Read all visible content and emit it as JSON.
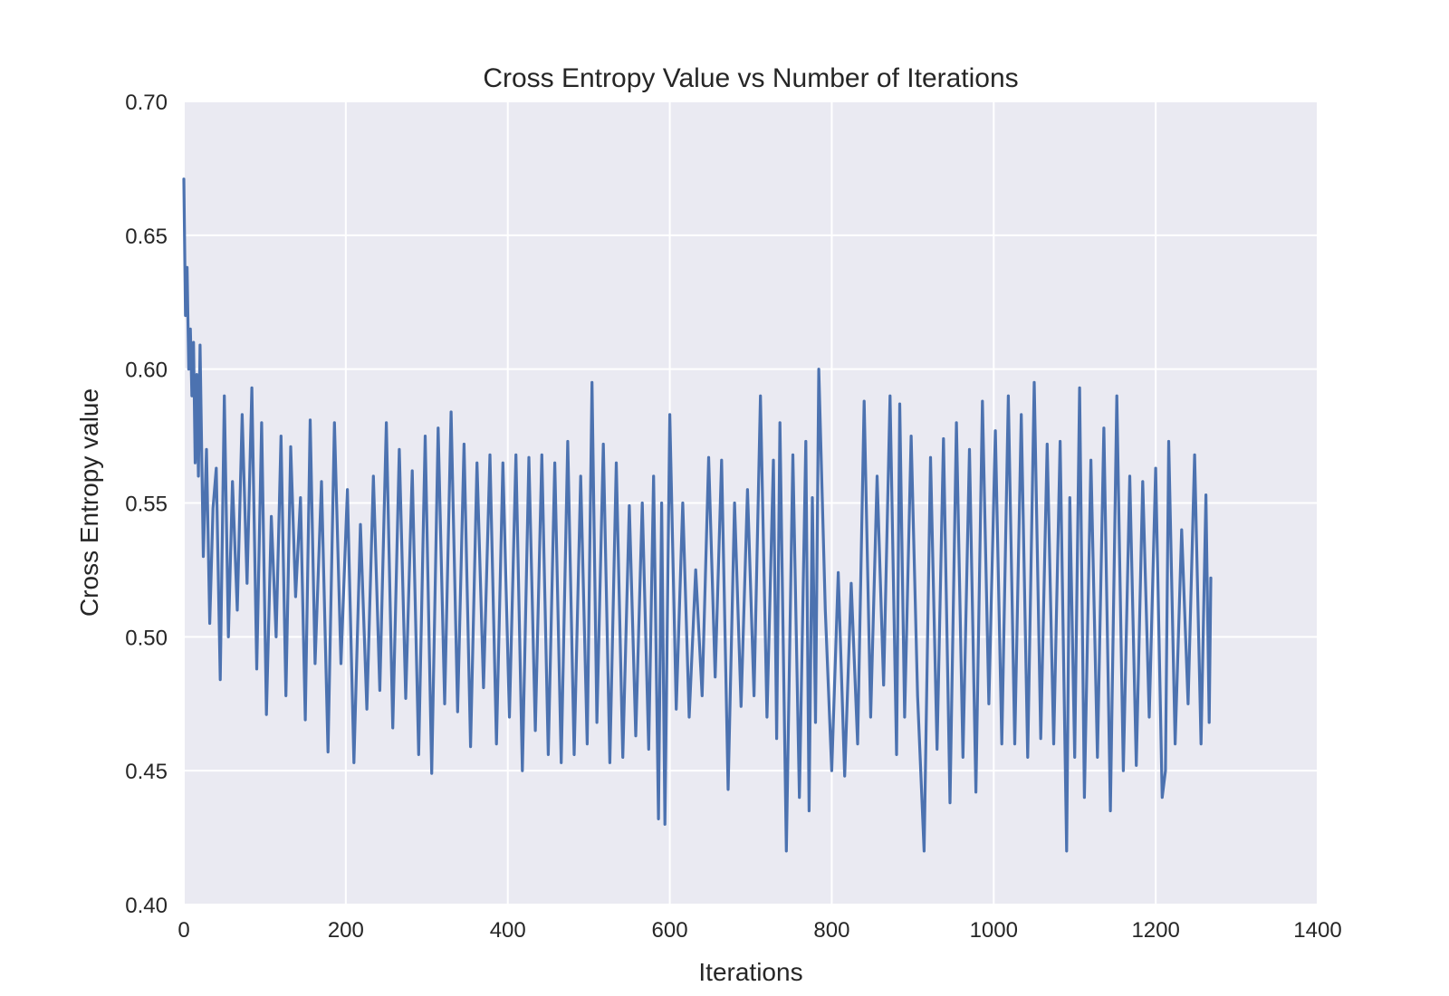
{
  "chart_data": {
    "type": "line",
    "title": "Cross Entropy Value vs Number of Iterations",
    "xlabel": "Iterations",
    "ylabel": "Cross Entropy value",
    "xlim": [
      0,
      1400
    ],
    "ylim": [
      0.4,
      0.7
    ],
    "x_ticks": [
      "0",
      "200",
      "400",
      "600",
      "800",
      "1000",
      "1200",
      "1400"
    ],
    "y_ticks": [
      "0.40",
      "0.45",
      "0.50",
      "0.55",
      "0.60",
      "0.65",
      "0.70"
    ],
    "grid": true,
    "legend": "none",
    "colors": {
      "plot_background": "#eaeaf2",
      "grid": "#ffffff",
      "line": "#4c72b0",
      "text": "#262626"
    },
    "series": [
      {
        "x": [
          0,
          2,
          4,
          6,
          8,
          10,
          12,
          14,
          16,
          18,
          20,
          24,
          28,
          32,
          36,
          40,
          45,
          50,
          55,
          60,
          66,
          72,
          78,
          84,
          90,
          96,
          102,
          108,
          114,
          120,
          126,
          132,
          138,
          144,
          150,
          156,
          162,
          170,
          178,
          186,
          194,
          202,
          210,
          218,
          226,
          234,
          242,
          250,
          258,
          266,
          274,
          282,
          290,
          298,
          306,
          314,
          322,
          330,
          338,
          346,
          354,
          362,
          370,
          378,
          386,
          394,
          402,
          410,
          418,
          426,
          434,
          442,
          450,
          458,
          466,
          474,
          482,
          490,
          498,
          504,
          510,
          518,
          526,
          534,
          542,
          550,
          558,
          566,
          574,
          580,
          586,
          590,
          594,
          600,
          608,
          616,
          624,
          632,
          640,
          648,
          656,
          664,
          672,
          680,
          688,
          696,
          704,
          712,
          720,
          728,
          732,
          736,
          744,
          752,
          760,
          768,
          772,
          776,
          780,
          784,
          792,
          800,
          808,
          816,
          824,
          832,
          840,
          848,
          856,
          864,
          872,
          880,
          884,
          890,
          898,
          906,
          914,
          922,
          930,
          938,
          946,
          954,
          962,
          970,
          978,
          986,
          994,
          1002,
          1010,
          1018,
          1026,
          1034,
          1042,
          1050,
          1058,
          1066,
          1074,
          1082,
          1090,
          1094,
          1100,
          1106,
          1112,
          1120,
          1128,
          1136,
          1144,
          1152,
          1160,
          1168,
          1176,
          1184,
          1192,
          1200,
          1208,
          1212,
          1216,
          1224,
          1232,
          1240,
          1248,
          1256,
          1262,
          1266,
          1268
        ],
        "y": [
          0.671,
          0.62,
          0.638,
          0.6,
          0.615,
          0.59,
          0.61,
          0.565,
          0.598,
          0.56,
          0.609,
          0.53,
          0.57,
          0.505,
          0.548,
          0.563,
          0.484,
          0.59,
          0.5,
          0.558,
          0.51,
          0.583,
          0.52,
          0.593,
          0.488,
          0.58,
          0.471,
          0.545,
          0.5,
          0.575,
          0.478,
          0.571,
          0.515,
          0.552,
          0.469,
          0.581,
          0.49,
          0.558,
          0.457,
          0.58,
          0.49,
          0.555,
          0.453,
          0.542,
          0.473,
          0.56,
          0.48,
          0.58,
          0.466,
          0.57,
          0.477,
          0.562,
          0.456,
          0.575,
          0.449,
          0.578,
          0.475,
          0.584,
          0.472,
          0.572,
          0.459,
          0.565,
          0.481,
          0.568,
          0.46,
          0.565,
          0.47,
          0.568,
          0.45,
          0.567,
          0.465,
          0.568,
          0.456,
          0.565,
          0.453,
          0.573,
          0.456,
          0.56,
          0.46,
          0.595,
          0.468,
          0.572,
          0.453,
          0.565,
          0.455,
          0.549,
          0.463,
          0.55,
          0.458,
          0.56,
          0.432,
          0.55,
          0.43,
          0.583,
          0.473,
          0.55,
          0.47,
          0.525,
          0.478,
          0.567,
          0.485,
          0.566,
          0.443,
          0.55,
          0.474,
          0.555,
          0.478,
          0.59,
          0.47,
          0.566,
          0.462,
          0.58,
          0.42,
          0.568,
          0.44,
          0.573,
          0.435,
          0.552,
          0.468,
          0.6,
          0.51,
          0.45,
          0.524,
          0.448,
          0.52,
          0.46,
          0.588,
          0.47,
          0.56,
          0.482,
          0.59,
          0.456,
          0.587,
          0.47,
          0.575,
          0.478,
          0.42,
          0.567,
          0.458,
          0.574,
          0.438,
          0.58,
          0.455,
          0.57,
          0.442,
          0.588,
          0.475,
          0.577,
          0.46,
          0.59,
          0.46,
          0.583,
          0.455,
          0.595,
          0.462,
          0.572,
          0.46,
          0.573,
          0.42,
          0.552,
          0.455,
          0.593,
          0.44,
          0.566,
          0.455,
          0.578,
          0.435,
          0.59,
          0.45,
          0.56,
          0.452,
          0.558,
          0.47,
          0.563,
          0.44,
          0.45,
          0.573,
          0.46,
          0.54,
          0.475,
          0.568,
          0.46,
          0.553,
          0.468,
          0.522
        ]
      }
    ]
  }
}
